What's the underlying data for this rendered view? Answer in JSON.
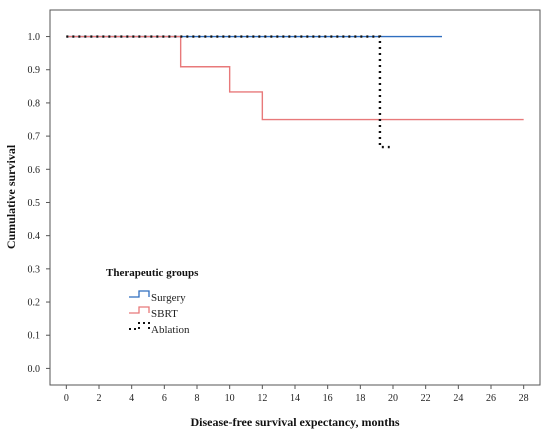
{
  "chart_data": {
    "type": "line",
    "subtype": "kaplan-meier step",
    "xlabel": "Disease-free survival expectancy, months",
    "ylabel": "Cumulative survival",
    "xlim": [
      -1,
      29
    ],
    "ylim": [
      -0.05,
      1.08
    ],
    "xticks": [
      0,
      2,
      4,
      6,
      8,
      10,
      12,
      14,
      16,
      18,
      20,
      22,
      24,
      26,
      28
    ],
    "yticks": [
      0.0,
      0.1,
      0.2,
      0.3,
      0.4,
      0.5,
      0.6,
      0.7,
      0.8,
      0.9,
      1.0
    ],
    "grid": false,
    "legend": {
      "title": "Therapeutic groups",
      "placement": "lower-left inside"
    },
    "series": [
      {
        "name": "Surgery",
        "color": "#2f6ebf",
        "dash": "solid",
        "steps": [
          [
            0,
            1.0
          ],
          [
            23,
            1.0
          ]
        ]
      },
      {
        "name": "SBRT",
        "color": "#e8797a",
        "dash": "solid",
        "steps": [
          [
            0,
            1.0
          ],
          [
            7,
            0.909
          ],
          [
            10,
            0.833
          ],
          [
            12,
            0.75
          ],
          [
            28,
            0.75
          ]
        ]
      },
      {
        "name": "Ablation",
        "color": "#111111",
        "dash": "dotted",
        "steps": [
          [
            0,
            1.0
          ],
          [
            19.2,
            0.667
          ],
          [
            19.8,
            0.667
          ]
        ]
      }
    ]
  }
}
